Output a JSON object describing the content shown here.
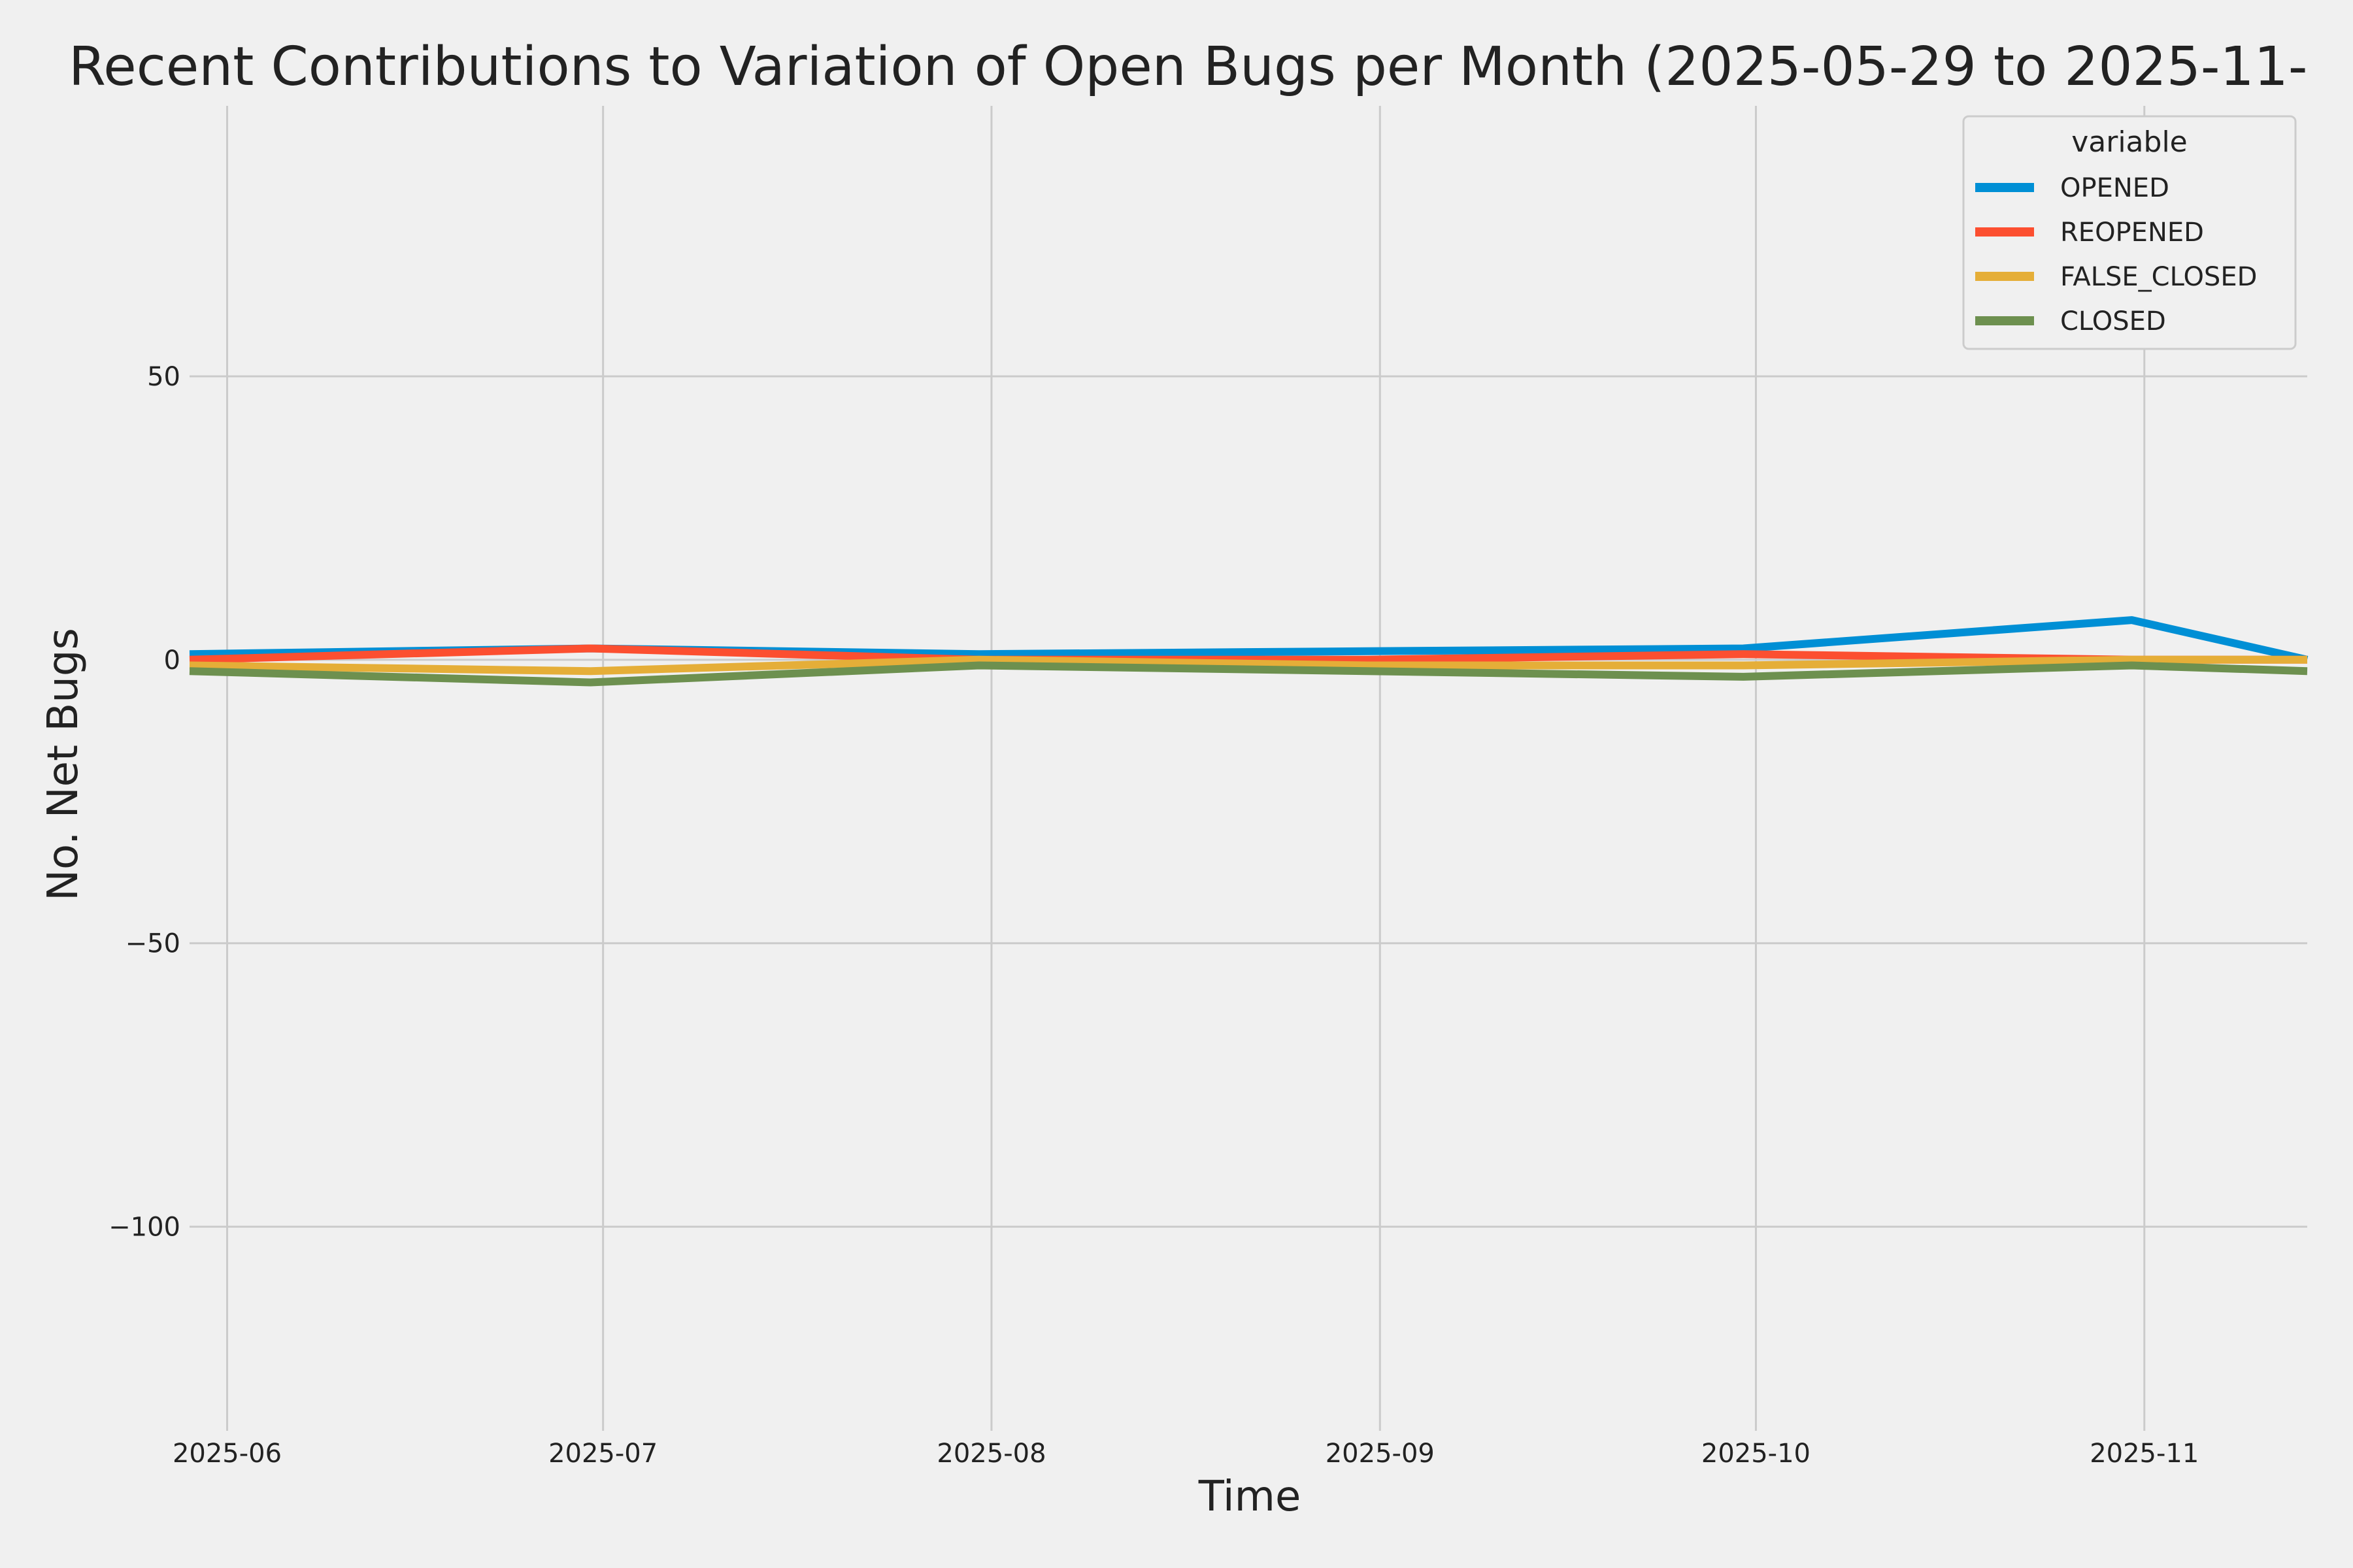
{
  "chart_data": {
    "type": "line",
    "title": "Recent Contributions to Variation of Open Bugs per Month (2025-05-29 to 2025-11-",
    "xlabel": "Time",
    "ylabel": "No. Net Bugs",
    "x": [
      "2025-05-29",
      "2025-06-30",
      "2025-07-31",
      "2025-08-31",
      "2025-09-30",
      "2025-10-31",
      "2025-11-14"
    ],
    "x_ticks": [
      "2025-06",
      "2025-07",
      "2025-08",
      "2025-09",
      "2025-10",
      "2025-11"
    ],
    "x_tick_dates": [
      "2025-06-01",
      "2025-07-01",
      "2025-08-01",
      "2025-09-01",
      "2025-10-01",
      "2025-11-01"
    ],
    "xlim": [
      "2025-05-29",
      "2025-11-14"
    ],
    "y_ticks": [
      50,
      0,
      -50,
      -100
    ],
    "y_tick_labels": [
      "50",
      "0",
      "−50",
      "−100"
    ],
    "ylim": [
      -136,
      106
    ],
    "grid": true,
    "legend_title": "variable",
    "legend_position": "top-right",
    "series": [
      {
        "name": "OPENED",
        "color": "#008fd5",
        "values": [
          1,
          2,
          1,
          1.5,
          2,
          7,
          0
        ]
      },
      {
        "name": "REOPENED",
        "color": "#fc4f30",
        "values": [
          0,
          2,
          0,
          0,
          1,
          0,
          0
        ]
      },
      {
        "name": "FALSE_CLOSED",
        "color": "#e5ae38",
        "values": [
          -1,
          -2,
          0,
          -1,
          -1,
          0,
          0
        ]
      },
      {
        "name": "CLOSED",
        "color": "#6d904f",
        "values": [
          -2,
          -4,
          -1,
          -2,
          -3,
          -1,
          -2
        ]
      }
    ]
  }
}
